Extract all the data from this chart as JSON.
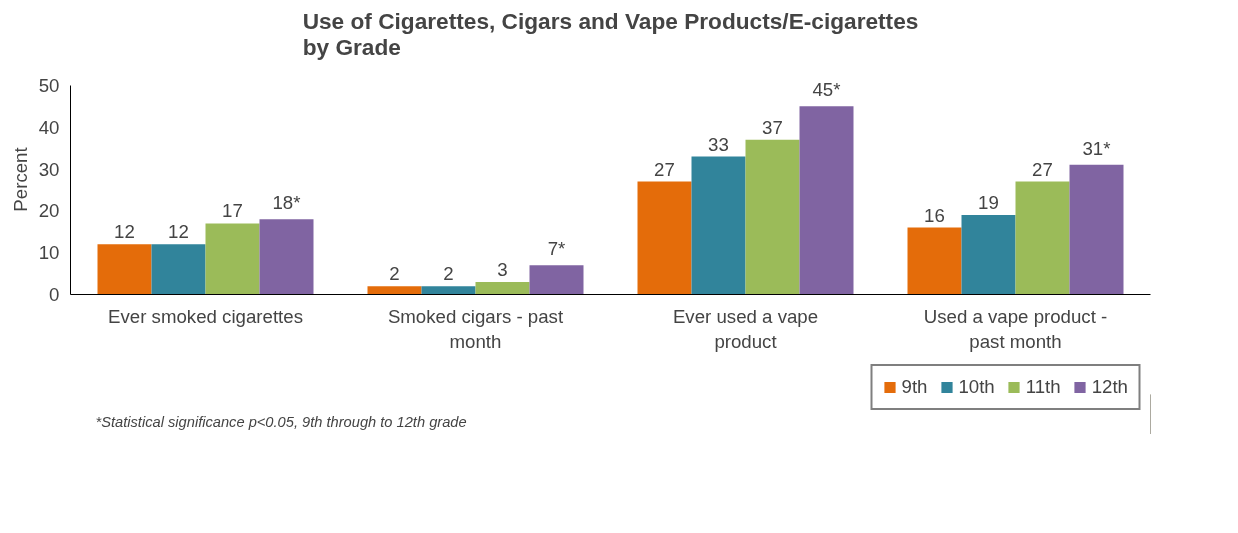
{
  "chart_data": {
    "type": "bar",
    "title": "Use of Cigarettes, Cigars and Vape Products/E-cigarettes\nby Grade",
    "ylabel": "Percent",
    "categories": [
      "Ever smoked cigarettes",
      "Smoked cigars - past month",
      "Ever used a vape product",
      "Used a vape product - past month"
    ],
    "series": [
      {
        "name": "9th",
        "color": "#e46c0a",
        "values": [
          12,
          2,
          27,
          16
        ],
        "value_labels": [
          "12",
          "2",
          "27",
          "16"
        ]
      },
      {
        "name": "10th",
        "color": "#31849b",
        "values": [
          12,
          2,
          33,
          19
        ],
        "value_labels": [
          "12",
          "2",
          "33",
          "19"
        ]
      },
      {
        "name": "11th",
        "color": "#9bbb59",
        "values": [
          17,
          3,
          37,
          27
        ],
        "value_labels": [
          "17",
          "3",
          "37",
          "27"
        ]
      },
      {
        "name": "12th",
        "color": "#8064a2",
        "values": [
          18,
          7,
          45,
          31
        ],
        "value_labels": [
          "18*",
          "7*",
          "45*",
          "31*"
        ]
      }
    ],
    "ylim": [
      0,
      50
    ],
    "yticks": [
      0,
      10,
      20,
      30,
      40,
      50
    ],
    "grid": false,
    "legend": "bottom right",
    "annotations": [
      "*Statistical significance p<0.05, 9th through to 12th grade"
    ]
  }
}
